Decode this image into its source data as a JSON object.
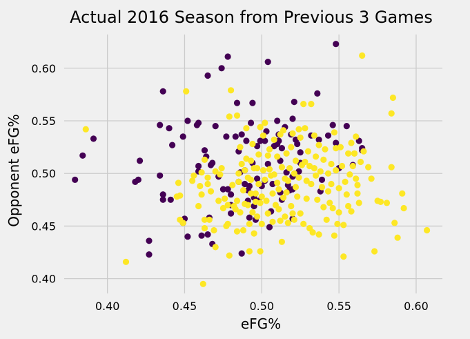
{
  "chart_data": {
    "type": "scatter",
    "title": "Actual 2016 Season from Previous 3 Games",
    "xlabel": "eFG%",
    "ylabel": "Opponent eFG%",
    "xlim": [
      0.372,
      0.617
    ],
    "ylim": [
      0.386,
      0.632
    ],
    "xticks": [
      "0.40",
      "0.45",
      "0.50",
      "0.55",
      "0.60"
    ],
    "yticks": [
      "0.40",
      "0.45",
      "0.50",
      "0.55",
      "0.60"
    ],
    "grid": true,
    "colors": {
      "class_0": "#440154",
      "class_1": "#fde725",
      "background": "#f0f0f0",
      "grid": "#cbcbcb"
    },
    "series": [
      {
        "values": [
          [
            0.379,
            0.494
          ],
          [
            0.384,
            0.517
          ],
          [
            0.391,
            0.533
          ],
          [
            0.418,
            0.492
          ],
          [
            0.42,
            0.494
          ],
          [
            0.421,
            0.512
          ],
          [
            0.427,
            0.436
          ],
          [
            0.427,
            0.423
          ],
          [
            0.434,
            0.546
          ],
          [
            0.434,
            0.498
          ],
          [
            0.436,
            0.578
          ],
          [
            0.436,
            0.475
          ],
          [
            0.436,
            0.48
          ],
          [
            0.44,
            0.543
          ],
          [
            0.441,
            0.475
          ],
          [
            0.442,
            0.527
          ],
          [
            0.449,
            0.535
          ],
          [
            0.449,
            0.453
          ],
          [
            0.45,
            0.457
          ],
          [
            0.452,
            0.55
          ],
          [
            0.452,
            0.44
          ],
          [
            0.458,
            0.546
          ],
          [
            0.459,
            0.548
          ],
          [
            0.459,
            0.507
          ],
          [
            0.459,
            0.502
          ],
          [
            0.461,
            0.441
          ],
          [
            0.463,
            0.522
          ],
          [
            0.464,
            0.516
          ],
          [
            0.465,
            0.593
          ],
          [
            0.465,
            0.442
          ],
          [
            0.466,
            0.458
          ],
          [
            0.467,
            0.508
          ],
          [
            0.468,
            0.51
          ],
          [
            0.468,
            0.433
          ],
          [
            0.47,
            0.545
          ],
          [
            0.472,
            0.497
          ],
          [
            0.474,
            0.6
          ],
          [
            0.475,
            0.485
          ],
          [
            0.477,
            0.535
          ],
          [
            0.478,
            0.611
          ],
          [
            0.478,
            0.485
          ],
          [
            0.48,
            0.48
          ],
          [
            0.48,
            0.47
          ],
          [
            0.48,
            0.462
          ],
          [
            0.483,
            0.535
          ],
          [
            0.484,
            0.567
          ],
          [
            0.485,
            0.492
          ],
          [
            0.485,
            0.521
          ],
          [
            0.486,
            0.501
          ],
          [
            0.487,
            0.424
          ],
          [
            0.487,
            0.537
          ],
          [
            0.489,
            0.49
          ],
          [
            0.489,
            0.503
          ],
          [
            0.49,
            0.531
          ],
          [
            0.491,
            0.474
          ],
          [
            0.491,
            0.484
          ],
          [
            0.492,
            0.488
          ],
          [
            0.492,
            0.458
          ],
          [
            0.493,
            0.548
          ],
          [
            0.494,
            0.567
          ],
          [
            0.494,
            0.51
          ],
          [
            0.495,
            0.477
          ],
          [
            0.495,
            0.469
          ],
          [
            0.496,
            0.456
          ],
          [
            0.497,
            0.526
          ],
          [
            0.497,
            0.495
          ],
          [
            0.498,
            0.474
          ],
          [
            0.499,
            0.531
          ],
          [
            0.5,
            0.488
          ],
          [
            0.502,
            0.493
          ],
          [
            0.502,
            0.531
          ],
          [
            0.503,
            0.54
          ],
          [
            0.504,
            0.606
          ],
          [
            0.504,
            0.509
          ],
          [
            0.505,
            0.449
          ],
          [
            0.506,
            0.464
          ],
          [
            0.507,
            0.49
          ],
          [
            0.508,
            0.526
          ],
          [
            0.51,
            0.528
          ],
          [
            0.51,
            0.55
          ],
          [
            0.511,
            0.537
          ],
          [
            0.511,
            0.531
          ],
          [
            0.512,
            0.512
          ],
          [
            0.512,
            0.482
          ],
          [
            0.513,
            0.524
          ],
          [
            0.513,
            0.475
          ],
          [
            0.515,
            0.544
          ],
          [
            0.516,
            0.501
          ],
          [
            0.517,
            0.489
          ],
          [
            0.518,
            0.484
          ],
          [
            0.519,
            0.537
          ],
          [
            0.52,
            0.497
          ],
          [
            0.52,
            0.485
          ],
          [
            0.52,
            0.457
          ],
          [
            0.521,
            0.568
          ],
          [
            0.522,
            0.532
          ],
          [
            0.523,
            0.528
          ],
          [
            0.524,
            0.502
          ],
          [
            0.525,
            0.51
          ],
          [
            0.532,
            0.536
          ],
          [
            0.536,
            0.576
          ],
          [
            0.537,
            0.532
          ],
          [
            0.538,
            0.483
          ],
          [
            0.539,
            0.494
          ],
          [
            0.543,
            0.536
          ],
          [
            0.546,
            0.546
          ],
          [
            0.548,
            0.623
          ],
          [
            0.548,
            0.529
          ],
          [
            0.55,
            0.505
          ],
          [
            0.555,
            0.545
          ],
          [
            0.559,
            0.508
          ],
          [
            0.565,
            0.522
          ],
          [
            0.565,
            0.524
          ],
          [
            0.563,
            0.531
          ],
          [
            0.52,
            0.552
          ],
          [
            0.525,
            0.52
          ]
        ]
      },
      {
        "values": [
          [
            0.386,
            0.542
          ],
          [
            0.412,
            0.416
          ],
          [
            0.445,
            0.478
          ],
          [
            0.446,
            0.491
          ],
          [
            0.447,
            0.479
          ],
          [
            0.447,
            0.456
          ],
          [
            0.449,
            0.453
          ],
          [
            0.451,
            0.578
          ],
          [
            0.455,
            0.493
          ],
          [
            0.456,
            0.498
          ],
          [
            0.459,
            0.469
          ],
          [
            0.46,
            0.488
          ],
          [
            0.461,
            0.48
          ],
          [
            0.461,
            0.501
          ],
          [
            0.462,
            0.395
          ],
          [
            0.463,
            0.513
          ],
          [
            0.463,
            0.456
          ],
          [
            0.463,
            0.448
          ],
          [
            0.465,
            0.496
          ],
          [
            0.465,
            0.49
          ],
          [
            0.466,
            0.456
          ],
          [
            0.467,
            0.483
          ],
          [
            0.469,
            0.446
          ],
          [
            0.47,
            0.43
          ],
          [
            0.47,
            0.502
          ],
          [
            0.472,
            0.474
          ],
          [
            0.473,
            0.499
          ],
          [
            0.474,
            0.505
          ],
          [
            0.475,
            0.467
          ],
          [
            0.476,
            0.476
          ],
          [
            0.477,
            0.45
          ],
          [
            0.478,
            0.47
          ],
          [
            0.478,
            0.452
          ],
          [
            0.479,
            0.554
          ],
          [
            0.479,
            0.422
          ],
          [
            0.48,
            0.579
          ],
          [
            0.481,
            0.489
          ],
          [
            0.482,
            0.469
          ],
          [
            0.483,
            0.466
          ],
          [
            0.484,
            0.445
          ],
          [
            0.484,
            0.555
          ],
          [
            0.484,
            0.474
          ],
          [
            0.485,
            0.5
          ],
          [
            0.485,
            0.492
          ],
          [
            0.486,
            0.463
          ],
          [
            0.486,
            0.525
          ],
          [
            0.487,
            0.509
          ],
          [
            0.488,
            0.484
          ],
          [
            0.488,
            0.446
          ],
          [
            0.489,
            0.471
          ],
          [
            0.489,
            0.503
          ],
          [
            0.49,
            0.514
          ],
          [
            0.49,
            0.543
          ],
          [
            0.491,
            0.496
          ],
          [
            0.491,
            0.47
          ],
          [
            0.492,
            0.452
          ],
          [
            0.492,
            0.426
          ],
          [
            0.493,
            0.512
          ],
          [
            0.493,
            0.481
          ],
          [
            0.493,
            0.494
          ],
          [
            0.494,
            0.528
          ],
          [
            0.494,
            0.463
          ],
          [
            0.495,
            0.505
          ],
          [
            0.495,
            0.443
          ],
          [
            0.496,
            0.481
          ],
          [
            0.496,
            0.473
          ],
          [
            0.497,
            0.505
          ],
          [
            0.497,
            0.459
          ],
          [
            0.498,
            0.49
          ],
          [
            0.498,
            0.518
          ],
          [
            0.499,
            0.544
          ],
          [
            0.499,
            0.426
          ],
          [
            0.499,
            0.472
          ],
          [
            0.5,
            0.452
          ],
          [
            0.5,
            0.478
          ],
          [
            0.501,
            0.503
          ],
          [
            0.501,
            0.536
          ],
          [
            0.502,
            0.548
          ],
          [
            0.502,
            0.494
          ],
          [
            0.503,
            0.474
          ],
          [
            0.504,
            0.517
          ],
          [
            0.504,
            0.462
          ],
          [
            0.505,
            0.523
          ],
          [
            0.505,
            0.504
          ],
          [
            0.506,
            0.498
          ],
          [
            0.507,
            0.481
          ],
          [
            0.507,
            0.454
          ],
          [
            0.508,
            0.499
          ],
          [
            0.508,
            0.532
          ],
          [
            0.509,
            0.47
          ],
          [
            0.51,
            0.516
          ],
          [
            0.51,
            0.491
          ],
          [
            0.511,
            0.466
          ],
          [
            0.511,
            0.485
          ],
          [
            0.512,
            0.455
          ],
          [
            0.512,
            0.537
          ],
          [
            0.513,
            0.506
          ],
          [
            0.513,
            0.435
          ],
          [
            0.514,
            0.541
          ],
          [
            0.514,
            0.477
          ],
          [
            0.515,
            0.459
          ],
          [
            0.515,
            0.495
          ],
          [
            0.516,
            0.482
          ],
          [
            0.516,
            0.519
          ],
          [
            0.517,
            0.453
          ],
          [
            0.517,
            0.493
          ],
          [
            0.518,
            0.505
          ],
          [
            0.519,
            0.469
          ],
          [
            0.519,
            0.525
          ],
          [
            0.52,
            0.462
          ],
          [
            0.52,
            0.538
          ],
          [
            0.521,
            0.5
          ],
          [
            0.521,
            0.456
          ],
          [
            0.522,
            0.487
          ],
          [
            0.522,
            0.512
          ],
          [
            0.523,
            0.478
          ],
          [
            0.524,
            0.542
          ],
          [
            0.524,
            0.496
          ],
          [
            0.525,
            0.462
          ],
          [
            0.525,
            0.534
          ],
          [
            0.526,
            0.508
          ],
          [
            0.527,
            0.452
          ],
          [
            0.527,
            0.566
          ],
          [
            0.528,
            0.511
          ],
          [
            0.529,
            0.493
          ],
          [
            0.529,
            0.476
          ],
          [
            0.53,
            0.521
          ],
          [
            0.531,
            0.448
          ],
          [
            0.531,
            0.507
          ],
          [
            0.532,
            0.566
          ],
          [
            0.532,
            0.49
          ],
          [
            0.533,
            0.444
          ],
          [
            0.534,
            0.536
          ],
          [
            0.535,
            0.516
          ],
          [
            0.535,
            0.498
          ],
          [
            0.536,
            0.475
          ],
          [
            0.537,
            0.442
          ],
          [
            0.537,
            0.527
          ],
          [
            0.538,
            0.502
          ],
          [
            0.539,
            0.487
          ],
          [
            0.54,
            0.468
          ],
          [
            0.54,
            0.513
          ],
          [
            0.541,
            0.523
          ],
          [
            0.542,
            0.456
          ],
          [
            0.543,
            0.5
          ],
          [
            0.543,
            0.483
          ],
          [
            0.544,
            0.472
          ],
          [
            0.545,
            0.509
          ],
          [
            0.545,
            0.49
          ],
          [
            0.546,
            0.467
          ],
          [
            0.547,
            0.539
          ],
          [
            0.547,
            0.441
          ],
          [
            0.548,
            0.524
          ],
          [
            0.548,
            0.503
          ],
          [
            0.549,
            0.452
          ],
          [
            0.55,
            0.486
          ],
          [
            0.55,
            0.463
          ],
          [
            0.551,
            0.525
          ],
          [
            0.552,
            0.507
          ],
          [
            0.553,
            0.421
          ],
          [
            0.553,
            0.451
          ],
          [
            0.554,
            0.492
          ],
          [
            0.555,
            0.48
          ],
          [
            0.556,
            0.469
          ],
          [
            0.556,
            0.519
          ],
          [
            0.557,
            0.499
          ],
          [
            0.558,
            0.529
          ],
          [
            0.558,
            0.464
          ],
          [
            0.559,
            0.507
          ],
          [
            0.56,
            0.519
          ],
          [
            0.561,
            0.495
          ],
          [
            0.561,
            0.535
          ],
          [
            0.562,
            0.489
          ],
          [
            0.562,
            0.481
          ],
          [
            0.563,
            0.472
          ],
          [
            0.564,
            0.511
          ],
          [
            0.565,
            0.612
          ],
          [
            0.566,
            0.521
          ],
          [
            0.569,
            0.506
          ],
          [
            0.571,
            0.495
          ],
          [
            0.573,
            0.426
          ],
          [
            0.575,
            0.474
          ],
          [
            0.577,
            0.473
          ],
          [
            0.581,
            0.472
          ],
          [
            0.584,
            0.506
          ],
          [
            0.584,
            0.557
          ],
          [
            0.585,
            0.572
          ],
          [
            0.586,
            0.453
          ],
          [
            0.588,
            0.439
          ],
          [
            0.591,
            0.481
          ],
          [
            0.592,
            0.467
          ],
          [
            0.607,
            0.446
          ],
          [
            0.56,
            0.519
          ],
          [
            0.534,
            0.505
          ],
          [
            0.528,
            0.543
          ]
        ]
      }
    ]
  }
}
